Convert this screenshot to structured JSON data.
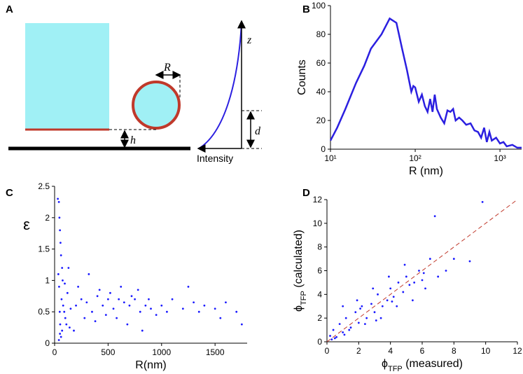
{
  "diagram": {
    "label": "A",
    "R": "R",
    "z": "z",
    "d": "d",
    "h": "h",
    "intensity": "Intensity"
  },
  "chart_data": [
    {
      "type": "line",
      "label": "B",
      "xlabel": "R (nm)",
      "ylabel": "Counts",
      "color": "#2b1fe0",
      "xscale": "log",
      "x": [
        10,
        12,
        15,
        20,
        25,
        30,
        40,
        50,
        60,
        70,
        80,
        90,
        95,
        100,
        110,
        120,
        130,
        140,
        150,
        160,
        170,
        180,
        200,
        220,
        240,
        260,
        280,
        300,
        330,
        360,
        400,
        450,
        500,
        550,
        600,
        650,
        700,
        750,
        800,
        900,
        1000,
        1100,
        1200,
        1400,
        1600,
        1800
      ],
      "values": [
        6,
        15,
        28,
        46,
        58,
        70,
        80,
        91,
        88,
        70,
        55,
        40,
        44,
        43,
        33,
        38,
        30,
        26,
        35,
        26,
        38,
        28,
        22,
        18,
        27,
        26,
        28,
        20,
        22,
        20,
        17,
        18,
        13,
        12,
        8,
        15,
        5,
        12,
        6,
        8,
        4,
        5,
        2,
        3,
        1,
        1
      ],
      "xlim": [
        10,
        1800
      ],
      "xticks": [
        {
          "value": 10,
          "label": "10¹"
        },
        {
          "value": 100,
          "label": "10²"
        },
        {
          "value": 1000,
          "label": "10³"
        }
      ],
      "ylim": [
        0,
        100
      ],
      "yticks": [
        0,
        20,
        40,
        60,
        80,
        100
      ]
    },
    {
      "type": "scatter",
      "label": "C",
      "xlabel": "R(nm)",
      "ylabel": "ε",
      "ylabel_rotate": false,
      "series": [
        {
          "color": "#1a1aff",
          "x": [
            30,
            40,
            45,
            50,
            55,
            60,
            35,
            42,
            48,
            52,
            65,
            70,
            80,
            90,
            100,
            120,
            150,
            200,
            250,
            300,
            350,
            400,
            450,
            500,
            550,
            600,
            650,
            700,
            750,
            800,
            850,
            900,
            950,
            1000,
            1050,
            1100,
            1200,
            1250,
            1300,
            1350,
            1400,
            1500,
            1550,
            1600,
            1700,
            1750,
            60,
            75,
            110,
            130,
            180,
            220,
            280,
            320,
            380,
            420,
            480,
            520,
            580,
            620,
            680,
            720,
            780,
            820,
            880,
            40,
            50,
            70,
            95,
            140
          ],
          "y": [
            2.3,
            2.25,
            2.0,
            1.8,
            1.6,
            1.4,
            1.1,
            0.9,
            0.5,
            0.3,
            0.7,
            0.2,
            0.6,
            0.5,
            0.4,
            0.8,
            0.55,
            0.6,
            0.7,
            0.65,
            0.5,
            0.75,
            0.6,
            0.7,
            0.55,
            0.7,
            0.65,
            0.6,
            0.7,
            0.5,
            0.6,
            0.55,
            0.45,
            0.6,
            0.5,
            0.7,
            0.55,
            0.9,
            0.65,
            0.5,
            0.6,
            0.55,
            0.4,
            0.65,
            0.5,
            0.3,
            0.1,
            1.0,
            0.3,
            1.2,
            0.2,
            0.9,
            0.4,
            1.1,
            0.35,
            0.85,
            0.45,
            0.8,
            0.4,
            0.9,
            0.3,
            0.75,
            0.85,
            0.2,
            0.7,
            0.05,
            0.15,
            1.2,
            0.95,
            0.25
          ]
        }
      ],
      "xlim": [
        0,
        1800
      ],
      "xticks": [
        0,
        500,
        1000,
        1500
      ],
      "ylim": [
        0,
        2.5
      ],
      "yticks": [
        0,
        0.5,
        1,
        1.5,
        2,
        2.5
      ]
    },
    {
      "type": "scatter",
      "label": "D",
      "xlabel": [
        "ϕ",
        "TFP",
        " (measured)"
      ],
      "ylabel": [
        "ϕ",
        "TFP",
        " (calculated)"
      ],
      "series": [
        {
          "color": "#1a1aff",
          "x": [
            0.2,
            0.4,
            0.5,
            0.8,
            1,
            1.2,
            1.5,
            1.8,
            2,
            2.2,
            2.5,
            2.8,
            3,
            3.2,
            3.5,
            3.8,
            4,
            4.2,
            4.5,
            4.8,
            5,
            5.2,
            5.5,
            5.8,
            6,
            6.2,
            6.5,
            7,
            7.5,
            8,
            9,
            9.8,
            0.3,
            0.6,
            1,
            1.4,
            1.9,
            2.4,
            2.9,
            3.4,
            3.9,
            4.4,
            4.9,
            5.4,
            6.1,
            6.8,
            1.1,
            2.1,
            3.1,
            4.1
          ],
          "y": [
            0.5,
            1.0,
            0.3,
            1.5,
            0.8,
            2.0,
            1.2,
            2.5,
            1.6,
            3.0,
            2.0,
            3.2,
            2.5,
            4.0,
            3.0,
            3.5,
            4.5,
            3.8,
            5.0,
            4.2,
            5.5,
            4.8,
            5.0,
            6.0,
            5.2,
            4.5,
            7.0,
            5.5,
            6.0,
            7.0,
            6.8,
            11.8,
            0.2,
            0.4,
            3.0,
            1.0,
            3.5,
            1.5,
            4.5,
            2.0,
            5.5,
            3.0,
            6.5,
            3.5,
            5.8,
            10.6,
            0.6,
            2.8,
            1.8,
            3.4
          ]
        },
        {
          "color": "#c0392b",
          "style": "dashed",
          "x": [
            0,
            12
          ],
          "y": [
            0,
            12
          ]
        }
      ],
      "xlim": [
        0,
        12
      ],
      "xticks": [
        0,
        2,
        4,
        6,
        8,
        10,
        12
      ],
      "ylim": [
        0,
        12
      ],
      "yticks": [
        0,
        2,
        4,
        6,
        8,
        10,
        12
      ]
    }
  ]
}
